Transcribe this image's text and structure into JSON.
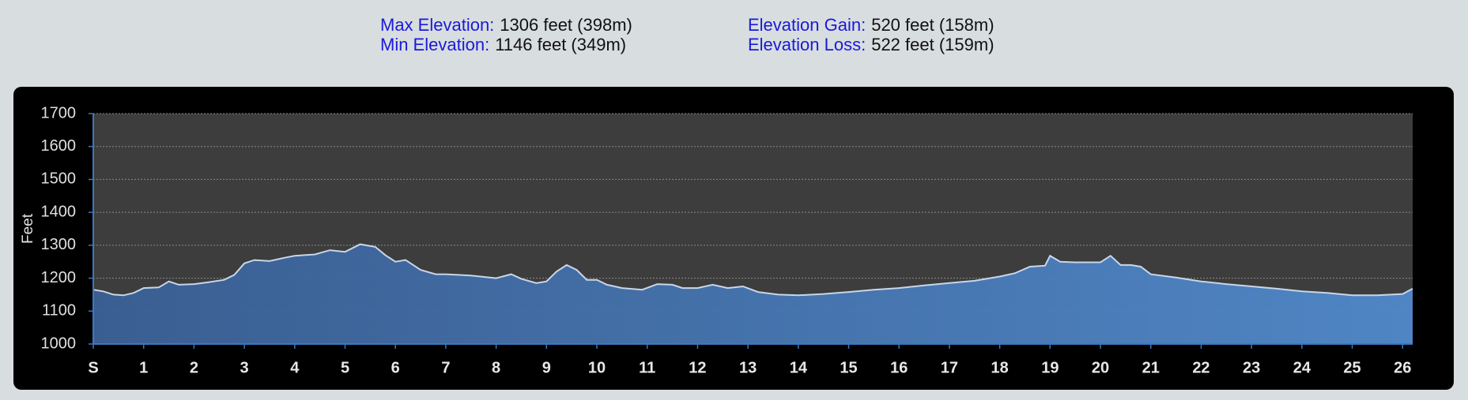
{
  "header": {
    "stats": [
      {
        "label": "Max Elevation:",
        "value": "1306 feet (398m)"
      },
      {
        "label": "Min Elevation:",
        "value": "1146 feet (349m)"
      },
      {
        "label": "Elevation Gain:",
        "value": "520 feet (158m)"
      },
      {
        "label": "Elevation Loss:",
        "value": "522 feet (159m)"
      }
    ]
  },
  "chart_data": {
    "type": "area",
    "y_label": "Feet",
    "color": "#4a7fbf",
    "line_color": "#c9d6e8",
    "grid": true,
    "x": [
      0,
      0.2,
      0.4,
      0.6,
      0.8,
      1.0,
      1.3,
      1.5,
      1.7,
      2.0,
      2.3,
      2.6,
      2.8,
      3.0,
      3.2,
      3.5,
      3.8,
      4.0,
      4.4,
      4.7,
      5.0,
      5.3,
      5.6,
      5.8,
      6.0,
      6.2,
      6.5,
      6.8,
      7.0,
      7.5,
      8.0,
      8.3,
      8.5,
      8.8,
      9.0,
      9.2,
      9.4,
      9.6,
      9.8,
      10.0,
      10.2,
      10.5,
      10.9,
      11.2,
      11.5,
      11.7,
      12.0,
      12.3,
      12.6,
      12.9,
      13.2,
      13.6,
      14.0,
      14.5,
      15.0,
      15.5,
      16.0,
      16.5,
      17.0,
      17.5,
      18.0,
      18.3,
      18.6,
      18.9,
      19.0,
      19.2,
      19.5,
      20.0,
      20.2,
      20.4,
      20.6,
      20.8,
      21.0,
      21.5,
      22.0,
      22.5,
      23.0,
      23.5,
      24.0,
      24.5,
      25.0,
      25.5,
      26.0,
      26.2
    ],
    "values": [
      1165,
      1160,
      1150,
      1148,
      1155,
      1170,
      1172,
      1190,
      1180,
      1182,
      1188,
      1195,
      1210,
      1245,
      1255,
      1252,
      1262,
      1268,
      1272,
      1285,
      1280,
      1303,
      1295,
      1270,
      1250,
      1255,
      1225,
      1212,
      1212,
      1208,
      1200,
      1212,
      1198,
      1185,
      1190,
      1220,
      1240,
      1225,
      1195,
      1195,
      1180,
      1170,
      1165,
      1182,
      1180,
      1170,
      1170,
      1180,
      1170,
      1175,
      1158,
      1150,
      1148,
      1152,
      1158,
      1165,
      1170,
      1178,
      1185,
      1192,
      1205,
      1215,
      1235,
      1238,
      1268,
      1250,
      1248,
      1248,
      1268,
      1240,
      1240,
      1235,
      1212,
      1202,
      1190,
      1182,
      1175,
      1168,
      1160,
      1155,
      1148,
      1148,
      1152,
      1168
    ],
    "xlim": [
      0,
      26.2
    ],
    "xticks": [
      {
        "value": 0,
        "label": "S"
      },
      1,
      2,
      3,
      4,
      5,
      6,
      7,
      8,
      9,
      10,
      11,
      12,
      13,
      14,
      15,
      16,
      17,
      18,
      19,
      20,
      21,
      22,
      23,
      24,
      25,
      26
    ],
    "ylim": [
      1000,
      1700
    ],
    "yticks": [
      1000,
      1100,
      1200,
      1300,
      1400,
      1500,
      1600,
      1700
    ]
  }
}
